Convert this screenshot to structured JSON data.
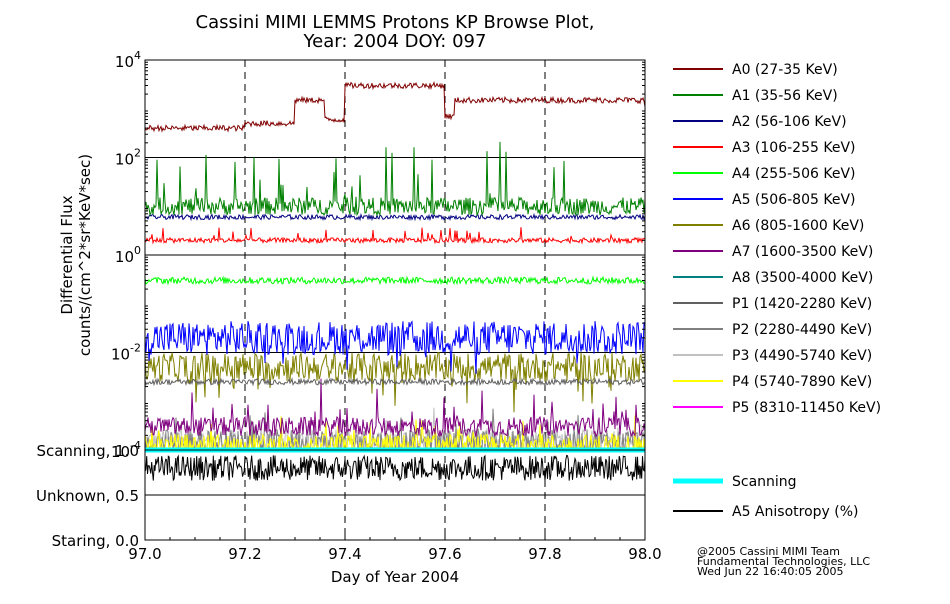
{
  "title_line1": "Cassini MIMI LEMMS Protons KP Browse Plot,",
  "title_line2": "Year: 2004 DOY: 097",
  "credit": [
    "@2005 Cassini MIMI Team",
    "Fundamental Technologies, LLC",
    "Wed Jun 22 16:40:05 2005"
  ],
  "chart_data": [
    {
      "type": "line",
      "title": "Cassini MIMI LEMMS Protons KP Browse Plot, Year: 2004 DOY: 097",
      "ylabel": [
        "Differential Flux",
        "counts/(cm^2*sr*KeV*sec)"
      ],
      "yscale": "log",
      "ylim": [
        0.0001,
        10000
      ],
      "y_ticks": [
        {
          "value": 0.0001,
          "base": "10",
          "exp": "-4"
        },
        {
          "value": 0.01,
          "base": "10",
          "exp": "-2"
        },
        {
          "value": 1,
          "base": "10",
          "exp": "0"
        },
        {
          "value": 100,
          "base": "10",
          "exp": "2"
        },
        {
          "value": 10000,
          "base": "10",
          "exp": "4"
        }
      ],
      "xlim": [
        97.0,
        98.0
      ],
      "grid": "horizontal solid lines at decades, vertical dashed lines every 0.2 day",
      "legend_position": "right",
      "series": [
        {
          "name": "A0 (27-35 KeV)",
          "color": "#800000",
          "segments": [
            [
              97.0,
              400
            ],
            [
              97.2,
              500
            ],
            [
              97.3,
              1500
            ],
            [
              97.36,
              600
            ],
            [
              97.4,
              3000
            ],
            [
              97.6,
              700
            ],
            [
              97.62,
              1500
            ],
            [
              98.0,
              1100
            ]
          ]
        },
        {
          "name": "A1 (35-56 KeV)",
          "color": "#008000",
          "segments": [
            [
              97.0,
              10
            ],
            [
              98.0,
              10
            ]
          ]
        },
        {
          "name": "A2 (56-106 KeV)",
          "color": "#000080",
          "segments": [
            [
              97.0,
              6
            ],
            [
              98.0,
              6
            ]
          ]
        },
        {
          "name": "A3 (106-255 KeV)",
          "color": "#ff0000",
          "segments": [
            [
              97.0,
              2
            ],
            [
              98.0,
              2
            ]
          ]
        },
        {
          "name": "A4 (255-506 KeV)",
          "color": "#00ff00",
          "segments": [
            [
              97.0,
              0.3
            ],
            [
              98.0,
              0.3
            ]
          ]
        },
        {
          "name": "A5 (506-805 KeV)",
          "color": "#0000ff",
          "segments": [
            [
              97.0,
              0.02
            ],
            [
              98.0,
              0.02
            ]
          ]
        },
        {
          "name": "A6 (805-1600 KeV)",
          "color": "#808000",
          "segments": [
            [
              97.0,
              0.005
            ],
            [
              98.0,
              0.005
            ]
          ]
        },
        {
          "name": "A7 (1600-3500 KeV)",
          "color": "#800080",
          "segments": [
            [
              97.0,
              0.0003
            ],
            [
              98.0,
              0.0003
            ]
          ]
        },
        {
          "name": "A8 (3500-4000 KeV)",
          "color": "#008080",
          "segments": []
        },
        {
          "name": "P1 (1420-2280 KeV)",
          "color": "#606060",
          "segments": [
            [
              97.0,
              0.0025
            ],
            [
              98.0,
              0.0025
            ]
          ]
        },
        {
          "name": "P2 (2280-4490 KeV)",
          "color": "#808080",
          "segments": [
            [
              97.0,
              0.00015
            ],
            [
              98.0,
              0.00015
            ]
          ]
        },
        {
          "name": "P3 (4490-5740 KeV)",
          "color": "#c0c0c0",
          "segments": [
            [
              97.0,
              0.00015
            ],
            [
              98.0,
              0.00015
            ]
          ]
        },
        {
          "name": "P4 (5740-7890 KeV)",
          "color": "#ffff00",
          "segments": [
            [
              97.0,
              0.00012
            ],
            [
              98.0,
              0.00012
            ]
          ]
        },
        {
          "name": "P5 (8310-11450 KeV)",
          "color": "#ff00ff",
          "segments": []
        }
      ]
    },
    {
      "type": "line",
      "xlabel": "Day of Year 2004",
      "xlim": [
        97.0,
        98.0
      ],
      "x_ticks": [
        "97.0",
        "97.2",
        "97.4",
        "97.6",
        "97.8",
        "98.0"
      ],
      "ylim": [
        0.0,
        1.0
      ],
      "y_ticks": [
        {
          "value": 1.0,
          "label": "Scanning, 1.0"
        },
        {
          "value": 0.5,
          "label": "Unknown, 0.5"
        },
        {
          "value": 0.0,
          "label": "Staring, 0.0"
        }
      ],
      "legend_position": "right",
      "series": [
        {
          "name": "Scanning",
          "color": "#00ffff",
          "value": 1.0
        },
        {
          "name": "A5 Anisotropy (%)",
          "color": "#000000",
          "base": 0.8
        }
      ]
    }
  ]
}
